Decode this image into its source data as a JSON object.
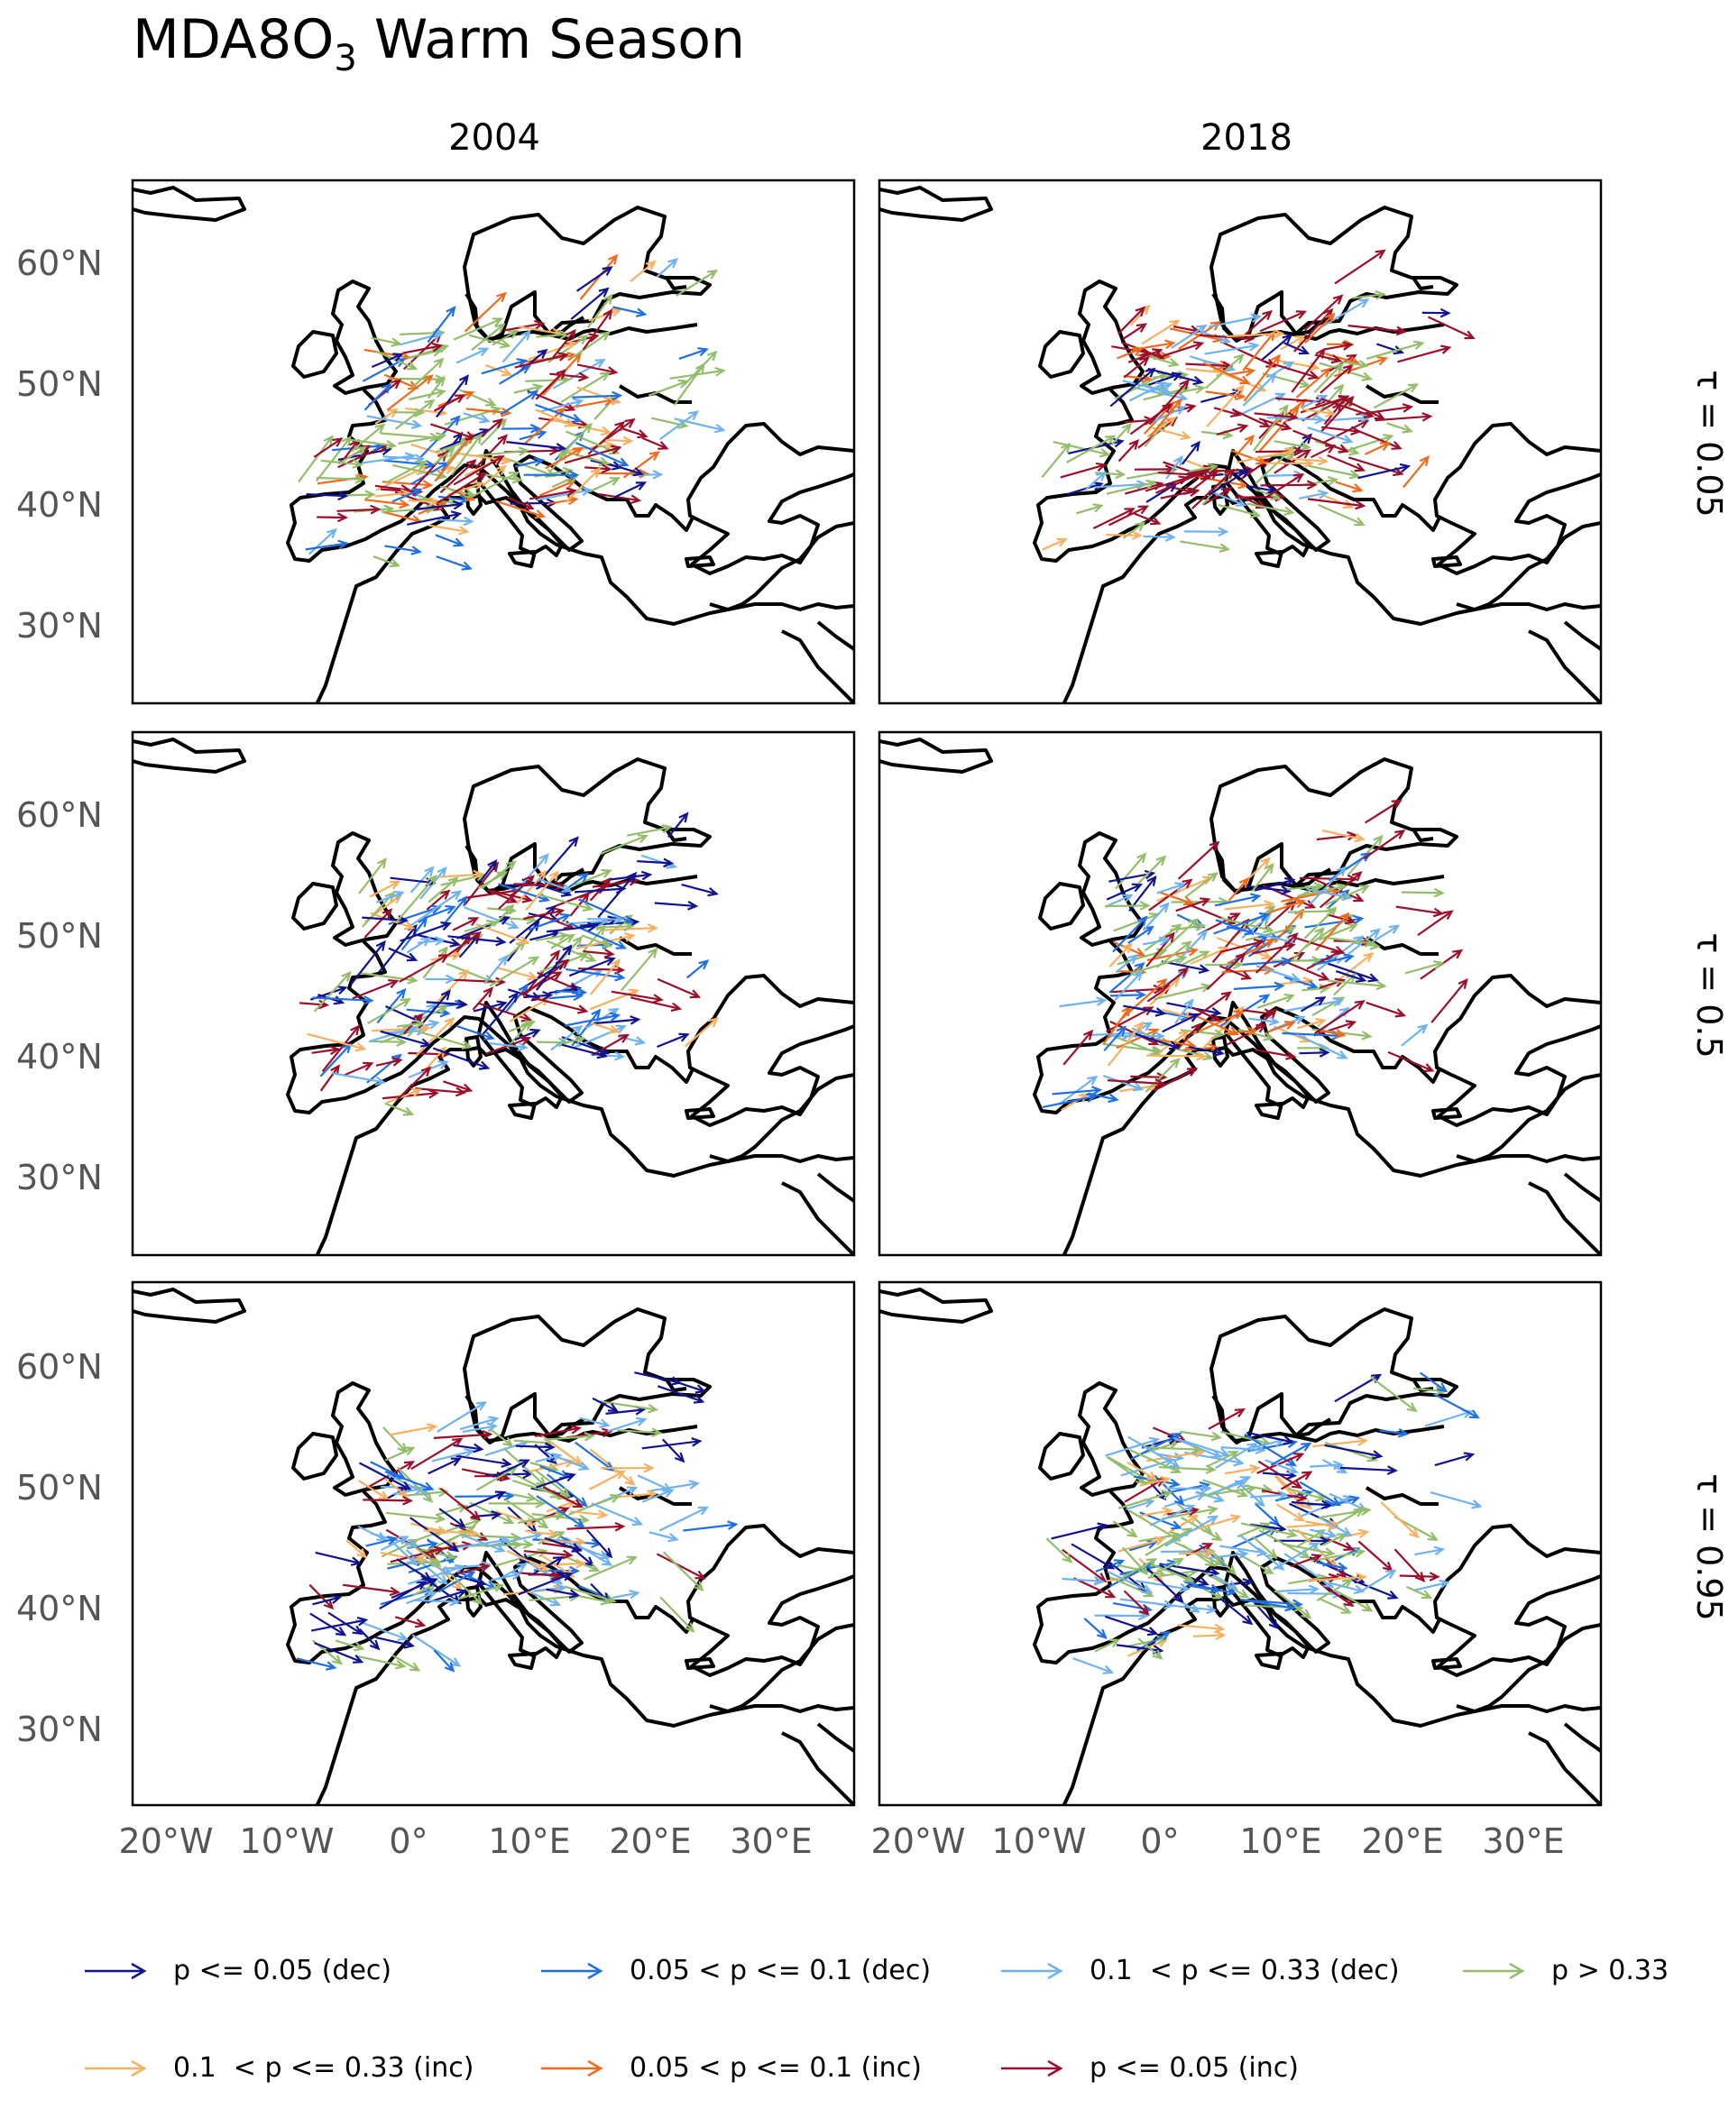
{
  "title": "MDA8O",
  "title_sub": "3",
  "title_suffix": " Warm Season",
  "columns": [
    "2004",
    "2018"
  ],
  "rows": [
    "τ = 0.05",
    "τ = 0.5",
    "τ = 0.95"
  ],
  "lat_labels": [
    "60°N",
    "50°N",
    "40°N",
    "30°N"
  ],
  "lon_labels": [
    "20°W",
    "10°W",
    "0°",
    "10°E",
    "20°E",
    "30°E"
  ],
  "legend": [
    {
      "label": "p <= 0.05 (dec)",
      "color": "#10128f"
    },
    {
      "label": "0.05 < p <= 0.1 (dec)",
      "color": "#1f6fe3"
    },
    {
      "label": "0.1  < p <= 0.33 (dec)",
      "color": "#6fb2ef"
    },
    {
      "label": "p > 0.33",
      "color": "#93bd6a"
    },
    {
      "label": "0.1  < p <= 0.33 (inc)",
      "color": "#f7b060"
    },
    {
      "label": "0.05 < p <= 0.1 (inc)",
      "color": "#f06a1c"
    },
    {
      "label": "p <= 0.05 (inc)",
      "color": "#9b0f2a"
    }
  ]
}
